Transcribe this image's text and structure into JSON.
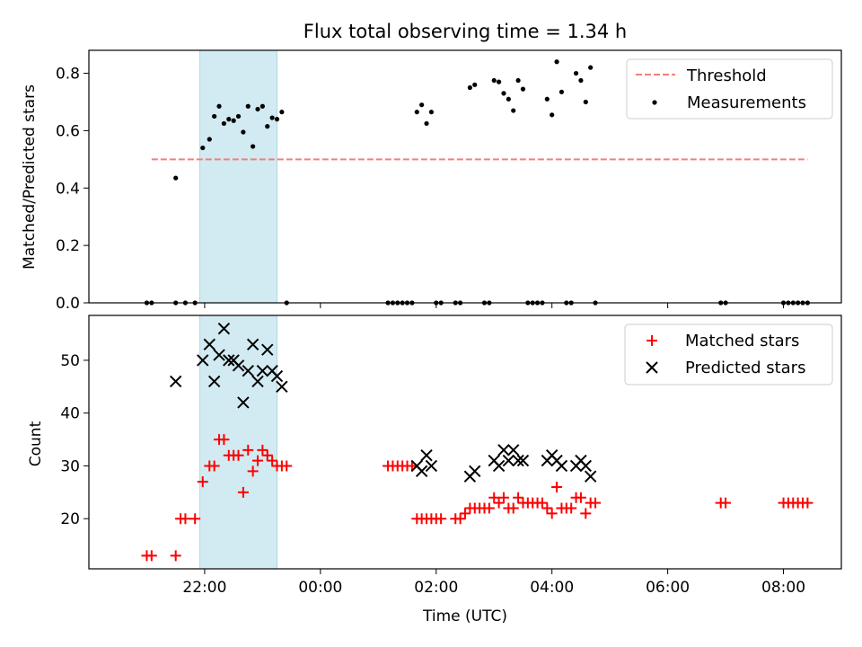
{
  "chart_data": [
    {
      "type": "scatter",
      "title": "Flux total observing time = 1.34 h",
      "xlabel": "",
      "ylabel": "Matched/Predicted stars",
      "xaxis": "time-of-night (hours UTC, continuing past midnight)",
      "xlim": [
        20.0,
        33.0
      ],
      "ylim": [
        0.0,
        0.88
      ],
      "yticks": [
        0.0,
        0.2,
        0.4,
        0.6,
        0.8
      ],
      "yticklabels": [
        "0.0",
        "0.2",
        "0.4",
        "0.6",
        "0.8"
      ],
      "highlight_band": {
        "x0": "21:55",
        "x1": "23:15",
        "color": "#add8e6"
      },
      "threshold": {
        "name": "Threshold",
        "y": 0.5,
        "x0": "21:05",
        "x1": "08:25",
        "color": "#f08080",
        "style": "dashed"
      },
      "series": [
        {
          "name": "Measurements",
          "color": "#000000",
          "marker": "dot",
          "points": [
            [
              "21:00",
              0
            ],
            [
              "21:05",
              0
            ],
            [
              "21:30",
              0.435
            ],
            [
              "21:30",
              0
            ],
            [
              "21:40",
              0
            ],
            [
              "21:50",
              0
            ],
            [
              "21:58",
              0.54
            ],
            [
              "22:05",
              0.57
            ],
            [
              "22:10",
              0.65
            ],
            [
              "22:15",
              0.685
            ],
            [
              "22:20",
              0.625
            ],
            [
              "22:25",
              0.64
            ],
            [
              "22:30",
              0.635
            ],
            [
              "22:35",
              0.65
            ],
            [
              "22:40",
              0.595
            ],
            [
              "22:45",
              0.685
            ],
            [
              "22:50",
              0.545
            ],
            [
              "22:55",
              0.675
            ],
            [
              "23:00",
              0.685
            ],
            [
              "23:05",
              0.615
            ],
            [
              "23:10",
              0.645
            ],
            [
              "23:15",
              0.64
            ],
            [
              "23:20",
              0.665
            ],
            [
              "23:25",
              0
            ],
            [
              "01:10",
              0
            ],
            [
              "01:15",
              0
            ],
            [
              "01:20",
              0
            ],
            [
              "01:25",
              0
            ],
            [
              "01:30",
              0
            ],
            [
              "01:35",
              0
            ],
            [
              "01:40",
              0.665
            ],
            [
              "01:45",
              0.69
            ],
            [
              "01:50",
              0.625
            ],
            [
              "01:55",
              0.665
            ],
            [
              "02:00",
              0
            ],
            [
              "02:05",
              0
            ],
            [
              "02:20",
              0
            ],
            [
              "02:25",
              0
            ],
            [
              "02:35",
              0.75
            ],
            [
              "02:40",
              0.76
            ],
            [
              "02:50",
              0
            ],
            [
              "02:55",
              0
            ],
            [
              "03:00",
              0.775
            ],
            [
              "03:05",
              0.77
            ],
            [
              "03:10",
              0.73
            ],
            [
              "03:15",
              0.71
            ],
            [
              "03:20",
              0.67
            ],
            [
              "03:25",
              0.775
            ],
            [
              "03:30",
              0.745
            ],
            [
              "03:35",
              0
            ],
            [
              "03:40",
              0
            ],
            [
              "03:45",
              0
            ],
            [
              "03:50",
              0
            ],
            [
              "03:55",
              0.71
            ],
            [
              "04:00",
              0.655
            ],
            [
              "04:05",
              0.84
            ],
            [
              "04:10",
              0.735
            ],
            [
              "04:15",
              0
            ],
            [
              "04:20",
              0
            ],
            [
              "04:25",
              0.8
            ],
            [
              "04:30",
              0.775
            ],
            [
              "04:35",
              0.7
            ],
            [
              "04:40",
              0.82
            ],
            [
              "04:45",
              0
            ],
            [
              "06:55",
              0
            ],
            [
              "07:00",
              0
            ],
            [
              "08:00",
              0
            ],
            [
              "08:05",
              0
            ],
            [
              "08:10",
              0
            ],
            [
              "08:15",
              0
            ],
            [
              "08:20",
              0
            ],
            [
              "08:25",
              0
            ]
          ]
        }
      ],
      "legend": {
        "position": "top-right",
        "entries": [
          "Threshold",
          "Measurements"
        ]
      }
    },
    {
      "type": "scatter",
      "title": "",
      "xlabel": "Time (UTC)",
      "ylabel": "Count",
      "xlim": [
        20.0,
        33.0
      ],
      "ylim": [
        10.5,
        58.5
      ],
      "yticks": [
        20,
        30,
        40,
        50
      ],
      "yticklabels": [
        "20",
        "30",
        "40",
        "50"
      ],
      "xticks": [
        "22:00",
        "00:00",
        "02:00",
        "04:00",
        "06:00",
        "08:00"
      ],
      "highlight_band": {
        "x0": "21:55",
        "x1": "23:15",
        "color": "#add8e6"
      },
      "series": [
        {
          "name": "Matched stars",
          "color": "#ff0000",
          "marker": "plus",
          "points": [
            [
              "21:00",
              13
            ],
            [
              "21:05",
              13
            ],
            [
              "21:30",
              13
            ],
            [
              "21:35",
              20
            ],
            [
              "21:40",
              20
            ],
            [
              "21:50",
              20
            ],
            [
              "21:58",
              27
            ],
            [
              "22:05",
              30
            ],
            [
              "22:10",
              30
            ],
            [
              "22:15",
              35
            ],
            [
              "22:20",
              35
            ],
            [
              "22:25",
              32
            ],
            [
              "22:30",
              32
            ],
            [
              "22:35",
              32
            ],
            [
              "22:40",
              25
            ],
            [
              "22:45",
              33
            ],
            [
              "22:50",
              29
            ],
            [
              "22:55",
              31
            ],
            [
              "23:00",
              33
            ],
            [
              "23:05",
              32
            ],
            [
              "23:10",
              31
            ],
            [
              "23:15",
              30
            ],
            [
              "23:20",
              30
            ],
            [
              "23:25",
              30
            ],
            [
              "01:10",
              30
            ],
            [
              "01:15",
              30
            ],
            [
              "01:20",
              30
            ],
            [
              "01:25",
              30
            ],
            [
              "01:30",
              30
            ],
            [
              "01:35",
              30
            ],
            [
              "01:40",
              20
            ],
            [
              "01:45",
              20
            ],
            [
              "01:50",
              20
            ],
            [
              "01:55",
              20
            ],
            [
              "02:00",
              20
            ],
            [
              "02:05",
              20
            ],
            [
              "02:20",
              20
            ],
            [
              "02:25",
              20
            ],
            [
              "02:30",
              21
            ],
            [
              "02:35",
              22
            ],
            [
              "02:40",
              22
            ],
            [
              "02:45",
              22
            ],
            [
              "02:50",
              22
            ],
            [
              "02:55",
              22
            ],
            [
              "03:00",
              24
            ],
            [
              "03:05",
              23
            ],
            [
              "03:10",
              24
            ],
            [
              "03:15",
              22
            ],
            [
              "03:20",
              22
            ],
            [
              "03:25",
              24
            ],
            [
              "03:30",
              23
            ],
            [
              "03:35",
              23
            ],
            [
              "03:40",
              23
            ],
            [
              "03:45",
              23
            ],
            [
              "03:50",
              23
            ],
            [
              "03:55",
              22
            ],
            [
              "04:00",
              21
            ],
            [
              "04:05",
              26
            ],
            [
              "04:10",
              22
            ],
            [
              "04:15",
              22
            ],
            [
              "04:20",
              22
            ],
            [
              "04:25",
              24
            ],
            [
              "04:30",
              24
            ],
            [
              "04:35",
              21
            ],
            [
              "04:40",
              23
            ],
            [
              "04:45",
              23
            ],
            [
              "06:55",
              23
            ],
            [
              "07:00",
              23
            ],
            [
              "08:00",
              23
            ],
            [
              "08:05",
              23
            ],
            [
              "08:10",
              23
            ],
            [
              "08:15",
              23
            ],
            [
              "08:20",
              23
            ],
            [
              "08:25",
              23
            ]
          ]
        },
        {
          "name": "Predicted stars",
          "color": "#000000",
          "marker": "cross",
          "points": [
            [
              "21:30",
              46
            ],
            [
              "21:58",
              50
            ],
            [
              "22:05",
              53
            ],
            [
              "22:10",
              46
            ],
            [
              "22:15",
              51
            ],
            [
              "22:20",
              56
            ],
            [
              "22:25",
              50
            ],
            [
              "22:30",
              50
            ],
            [
              "22:35",
              49
            ],
            [
              "22:40",
              42
            ],
            [
              "22:45",
              48
            ],
            [
              "22:50",
              53
            ],
            [
              "22:55",
              46
            ],
            [
              "23:00",
              48
            ],
            [
              "23:05",
              52
            ],
            [
              "23:10",
              48
            ],
            [
              "23:15",
              47
            ],
            [
              "23:20",
              45
            ],
            [
              "01:40",
              30
            ],
            [
              "01:45",
              29
            ],
            [
              "01:50",
              32
            ],
            [
              "01:55",
              30
            ],
            [
              "02:35",
              28
            ],
            [
              "02:40",
              29
            ],
            [
              "03:00",
              31
            ],
            [
              "03:05",
              30
            ],
            [
              "03:10",
              33
            ],
            [
              "03:15",
              31
            ],
            [
              "03:20",
              33
            ],
            [
              "03:25",
              31
            ],
            [
              "03:30",
              31
            ],
            [
              "03:55",
              31
            ],
            [
              "04:00",
              32
            ],
            [
              "04:05",
              31
            ],
            [
              "04:10",
              30
            ],
            [
              "04:25",
              30
            ],
            [
              "04:30",
              31
            ],
            [
              "04:35",
              30
            ],
            [
              "04:40",
              28
            ]
          ]
        }
      ],
      "legend": {
        "position": "top-right",
        "entries": [
          "Matched stars",
          "Predicted stars"
        ]
      }
    }
  ]
}
